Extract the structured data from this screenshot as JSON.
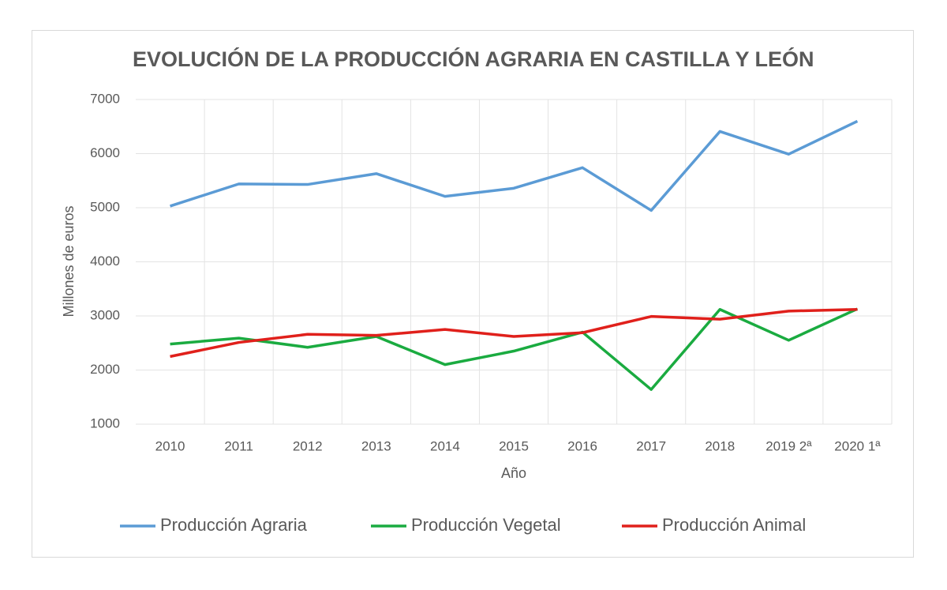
{
  "chart_data": {
    "type": "line",
    "title": "EVOLUCIÓN DE LA PRODUCCIÓN AGRARIA EN CASTILLA Y LEÓN",
    "x_label": "Año",
    "y_label": "Millones de euros",
    "categories": [
      "2010",
      "2011",
      "2012",
      "2013",
      "2014",
      "2015",
      "2016",
      "2017",
      "2018",
      "2019 2ª",
      "2020 1ª"
    ],
    "series": [
      {
        "name": "Producción Agraria",
        "color": "#5b9bd5",
        "values": [
          5030,
          5440,
          5430,
          5630,
          5210,
          5360,
          5740,
          4950,
          6410,
          5990,
          6600
        ]
      },
      {
        "name": "Producción Vegetal",
        "color": "#1aab40",
        "values": [
          2480,
          2590,
          2420,
          2620,
          2100,
          2350,
          2700,
          1640,
          3120,
          2550,
          3130
        ]
      },
      {
        "name": "Producción Animal",
        "color": "#e0201b",
        "values": [
          2250,
          2510,
          2660,
          2640,
          2750,
          2620,
          2690,
          2990,
          2940,
          3090,
          3120
        ]
      }
    ],
    "ylim": [
      1000,
      7000
    ],
    "yticks": [
      1000,
      2000,
      3000,
      4000,
      5000,
      6000,
      7000
    ],
    "grid": true,
    "legend": "bottom"
  }
}
